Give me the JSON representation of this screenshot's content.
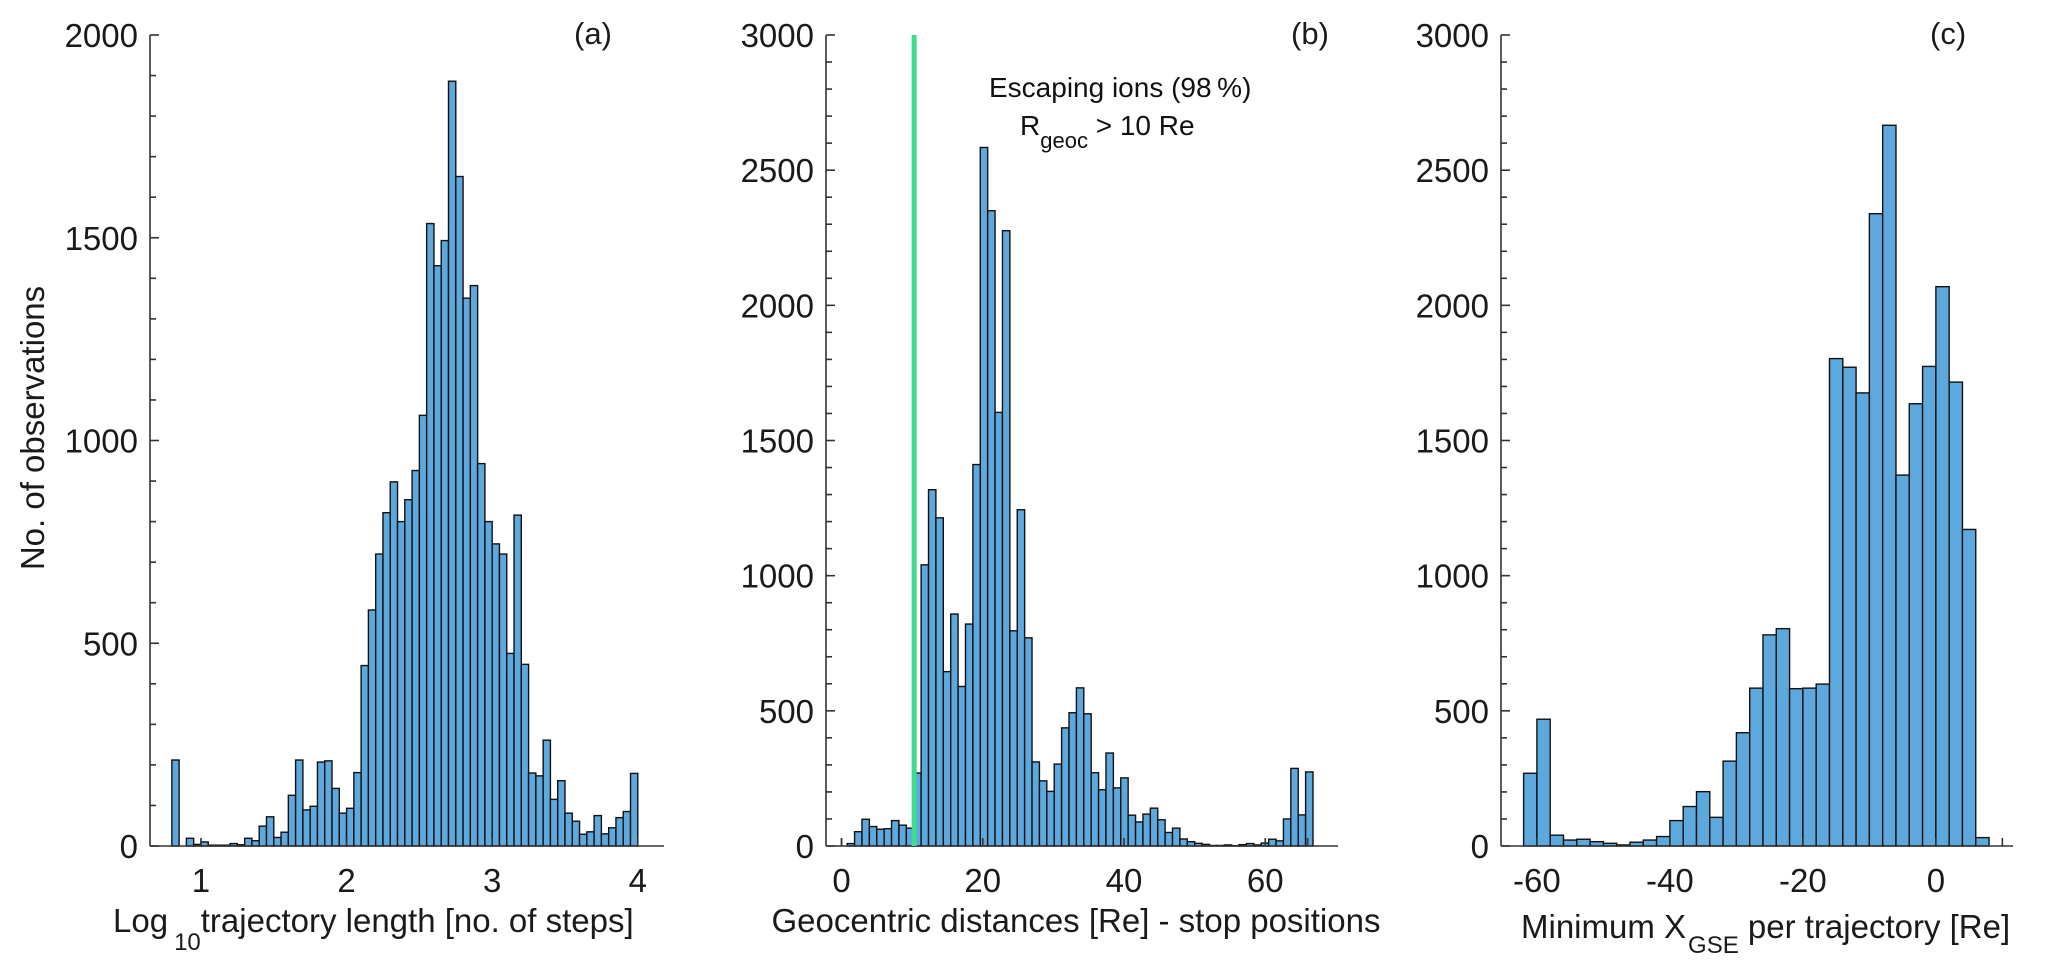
{
  "colors": {
    "bar_fill": "#5DA8DC",
    "bar_edge": "#111111",
    "threshold_line": "#3FDB8E",
    "axis": "#333333"
  },
  "chart_data": [
    {
      "type": "bar",
      "panel_label": "(a)",
      "title": "",
      "ylabel": "No. of observations",
      "xlabel_parts": {
        "main": "Log",
        "sub": "10",
        "rest": "trajectory length [no. of steps]"
      },
      "ylim": [
        0,
        2000
      ],
      "yticks": [
        0,
        500,
        1000,
        1500,
        2000
      ],
      "ytick_labels": [
        "0",
        "500",
        "1000",
        "1500",
        "2000"
      ],
      "yminor_step": 100,
      "xlim": [
        0.65,
        4.18
      ],
      "xticks": [
        1,
        2,
        3,
        4
      ],
      "xtick_labels": [
        "1",
        "2",
        "3",
        "4"
      ],
      "bin_start": 0.8,
      "bin_width": 0.05,
      "values": [
        212,
        0,
        19,
        4,
        10,
        2,
        2,
        2,
        6,
        3,
        19,
        13,
        49,
        72,
        21,
        34,
        125,
        212,
        89,
        98,
        207,
        210,
        142,
        81,
        93,
        181,
        445,
        582,
        720,
        822,
        898,
        800,
        854,
        926,
        1062,
        1535,
        1431,
        1493,
        1886,
        1651,
        1351,
        1382,
        943,
        800,
        745,
        720,
        475,
        816,
        448,
        180,
        173,
        261,
        115,
        161,
        81,
        61,
        29,
        35,
        75,
        30,
        45,
        70,
        85,
        179
      ]
    },
    {
      "type": "bar",
      "panel_label": "(b)",
      "title": "",
      "ylabel": "",
      "xlabel": "Geocentric distances [Re] - stop positions",
      "ylim": [
        0,
        3000
      ],
      "yticks": [
        0,
        500,
        1000,
        1500,
        2000,
        2500,
        3000
      ],
      "ytick_labels": [
        "0",
        "500",
        "1000",
        "1500",
        "2000",
        "2500",
        "3000"
      ],
      "yminor_step": 100,
      "xlim": [
        -2.2,
        70.3
      ],
      "xticks": [
        0,
        20,
        40,
        60
      ],
      "xtick_labels": [
        "0",
        "20",
        "40",
        "60"
      ],
      "xminor_ticks": [
        0,
        66
      ],
      "bin_start": 0.8,
      "bin_width": 1.047,
      "values": [
        9,
        53,
        99,
        72,
        62,
        64,
        94,
        77,
        66,
        270,
        1040,
        1318,
        1214,
        645,
        858,
        590,
        821,
        1411,
        2584,
        2350,
        1604,
        2276,
        796,
        1244,
        770,
        311,
        241,
        202,
        303,
        437,
        493,
        585,
        489,
        271,
        208,
        344,
        215,
        252,
        114,
        89,
        118,
        140,
        97,
        50,
        66,
        26,
        16,
        10,
        6,
        2,
        2,
        4,
        1,
        5,
        9,
        4,
        11,
        25,
        19,
        100,
        287,
        115,
        274
      ],
      "threshold": {
        "x": 10,
        "color": "#3FDB8E"
      },
      "annotation": {
        "line1": "Escaping ions (98 %)",
        "line2_main": "R",
        "line2_sub": "geoc",
        "line2_rest": " > 10 Re"
      }
    },
    {
      "type": "bar",
      "panel_label": "(c)",
      "title": "",
      "ylabel": "",
      "xlabel_parts": {
        "main": "Minimum X",
        "sub": "GSE",
        "rest": " per trajectory [Re]"
      },
      "ylim": [
        0,
        3000
      ],
      "yticks": [
        0,
        500,
        1000,
        1500,
        2000,
        2500,
        3000
      ],
      "ytick_labels": [
        "0",
        "500",
        "1000",
        "1500",
        "2000",
        "2500",
        "3000"
      ],
      "yminor_step": 100,
      "xlim": [
        -65.4,
        11.6
      ],
      "xticks": [
        -60,
        -40,
        -20,
        0
      ],
      "xtick_labels": [
        "-60",
        "-40",
        "-20",
        "0"
      ],
      "xminor_ticks": [
        10
      ],
      "bin_start": -62,
      "bin_width": 2,
      "values": [
        269,
        469,
        40,
        22,
        25,
        16,
        10,
        4,
        14,
        22,
        35,
        94,
        146,
        201,
        106,
        314,
        419,
        584,
        781,
        804,
        582,
        584,
        599,
        1803,
        1771,
        1676,
        2339,
        2666,
        1372,
        1636,
        1774,
        2069,
        1716,
        1171,
        31
      ]
    }
  ]
}
